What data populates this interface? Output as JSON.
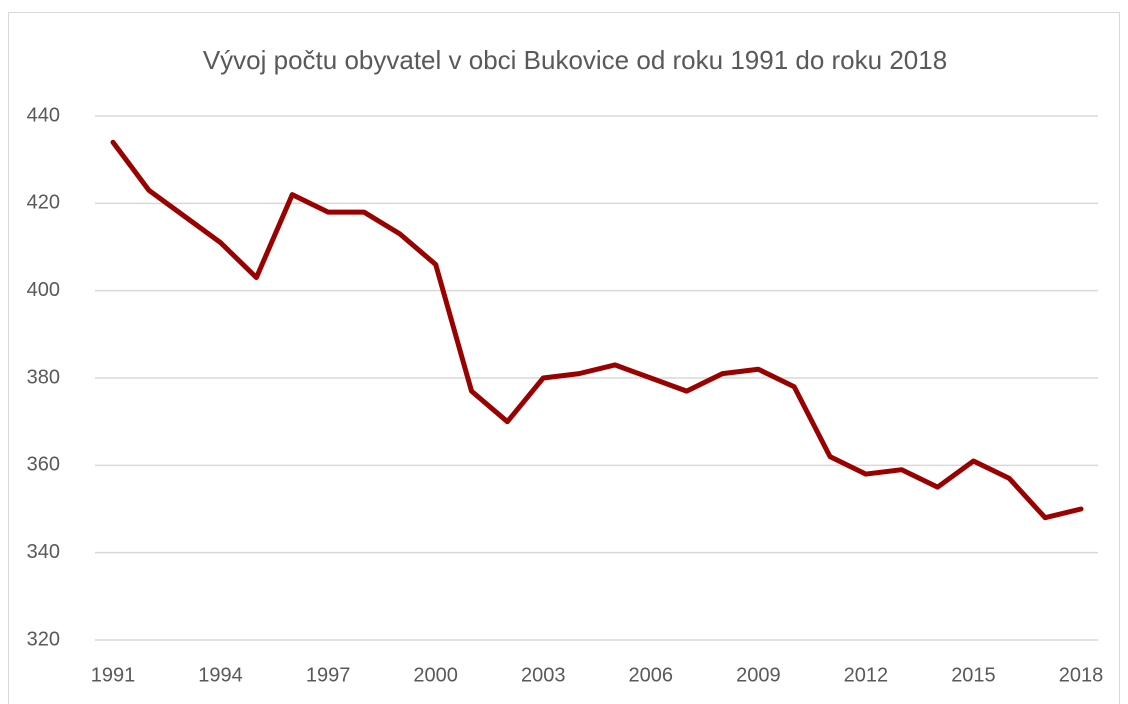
{
  "chart_data": {
    "type": "line",
    "title": "Vývoj počtu obyvatel v obci Bukovice od roku 1991 do roku 2018",
    "x": [
      1991,
      1992,
      1993,
      1994,
      1995,
      1996,
      1997,
      1998,
      1999,
      2000,
      2001,
      2002,
      2003,
      2004,
      2005,
      2006,
      2007,
      2008,
      2009,
      2010,
      2011,
      2012,
      2013,
      2014,
      2015,
      2016,
      2017,
      2018
    ],
    "series": [
      {
        "color": "#990000",
        "values": [
          434,
          423,
          417,
          411,
          403,
          422,
          418,
          418,
          413,
          406,
          377,
          370,
          380,
          381,
          383,
          380,
          377,
          381,
          382,
          378,
          362,
          358,
          359,
          355,
          361,
          357,
          348,
          350
        ]
      }
    ],
    "xlim": [
      1991,
      2018
    ],
    "xticks": [
      1991,
      1994,
      1997,
      2000,
      2003,
      2006,
      2009,
      2012,
      2015,
      2018
    ],
    "ylim": [
      320,
      440
    ],
    "yticks": [
      320,
      340,
      360,
      380,
      400,
      420,
      440
    ],
    "grid": true
  }
}
